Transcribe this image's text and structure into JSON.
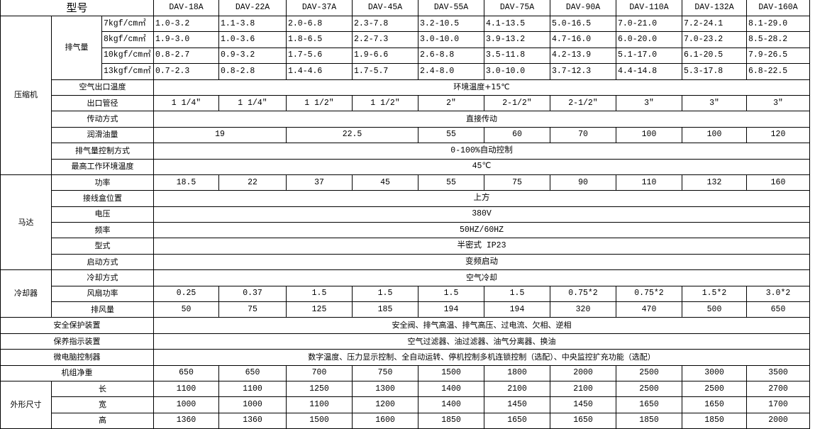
{
  "header": {
    "label": "型号",
    "models": [
      "DAV-18A",
      "DAV-22A",
      "DAV-37A",
      "DAV-45A",
      "DAV-55A",
      "DAV-75A",
      "DAV-90A",
      "DAV-110A",
      "DAV-132A",
      "DAV-160A"
    ]
  },
  "compressor": {
    "label": "压缩机",
    "displacement": {
      "label": "排气量",
      "rows": [
        {
          "pressure": "7kgf/cm㎡",
          "values": [
            "1.0-3.2",
            "1.1-3.8",
            "2.0-6.8",
            "2.3-7.8",
            "3.2-10.5",
            "4.1-13.5",
            "5.0-16.5",
            "7.0-21.0",
            "7.2-24.1",
            "8.1-29.0"
          ]
        },
        {
          "pressure": "8kgf/cm㎡",
          "values": [
            "1.9-3.0",
            "1.0-3.6",
            "1.8-6.5",
            "2.2-7.3",
            "3.0-10.0",
            "3.9-13.2",
            "4.7-16.0",
            "6.0-20.0",
            "7.0-23.2",
            "8.5-28.2"
          ]
        },
        {
          "pressure": "10kgf/cm㎡",
          "values": [
            "0.8-2.7",
            "0.9-3.2",
            "1.7-5.6",
            "1.9-6.6",
            "2.6-8.8",
            "3.5-11.8",
            "4.2-13.9",
            "5.1-17.0",
            "6.1-20.5",
            "7.9-26.5"
          ]
        },
        {
          "pressure": "13kgf/cm㎡",
          "values": [
            "0.7-2.3",
            "0.8-2.8",
            "1.4-4.6",
            "1.7-5.7",
            "2.4-8.0",
            "3.0-10.0",
            "3.7-12.3",
            "4.4-14.8",
            "5.3-17.8",
            "6.8-22.5"
          ]
        }
      ]
    },
    "air_outlet_temp": {
      "label": "空气出口温度",
      "value": "环境温度+15℃"
    },
    "outlet_pipe": {
      "label": "出口管径",
      "values": [
        "1 1/4″",
        "1 1/4″",
        "1 1/2″",
        "1 1/2″",
        "2″",
        "2-1/2″",
        "2-1/2″",
        "3″",
        "3″",
        "3″"
      ]
    },
    "drive": {
      "label": "传动方式",
      "value": "直接传动"
    },
    "lube_oil": {
      "label": "润滑油量",
      "groups": [
        {
          "value": "19",
          "span": 2
        },
        {
          "value": "22.5",
          "span": 2
        },
        {
          "value": "55",
          "span": 1
        },
        {
          "value": "60",
          "span": 1
        },
        {
          "value": "70",
          "span": 1
        },
        {
          "value": "100",
          "span": 1
        },
        {
          "value": "100",
          "span": 1
        },
        {
          "value": "120",
          "span": 1
        }
      ]
    },
    "capacity_control": {
      "label": "排气量控制方式",
      "value": "0-100%自动控制"
    },
    "max_ambient_temp": {
      "label": "最高工作环境温度",
      "value": "45℃"
    }
  },
  "motor": {
    "label": "马达",
    "power": {
      "label": "功率",
      "values": [
        "18.5",
        "22",
        "37",
        "45",
        "55",
        "75",
        "90",
        "110",
        "132",
        "160"
      ]
    },
    "junction_box": {
      "label": "接线盒位置",
      "value": "上方"
    },
    "voltage": {
      "label": "电压",
      "value": "380V"
    },
    "frequency": {
      "label": "频率",
      "value": "50HZ/60HZ"
    },
    "type": {
      "label": "型式",
      "value": "半密式 IP23"
    },
    "start": {
      "label": "启动方式",
      "value": "变频启动"
    }
  },
  "cooler": {
    "label": "冷却器",
    "method": {
      "label": "冷却方式",
      "value": "空气冷却"
    },
    "fan_power": {
      "label": "风扇功率",
      "values": [
        "0.25",
        "0.37",
        "1.5",
        "1.5",
        "1.5",
        "1.5",
        "0.75*2",
        "0.75*2",
        "1.5*2",
        "3.0*2"
      ]
    },
    "airflow": {
      "label": "排风量",
      "values": [
        "50",
        "75",
        "125",
        "185",
        "194",
        "194",
        "320",
        "470",
        "500",
        "650"
      ]
    }
  },
  "safety": {
    "label": "安全保护装置",
    "value": "安全阀、排气高温、排气高压、过电流、欠相、逆相"
  },
  "maintenance": {
    "label": "保养指示装置",
    "value": "空气过滤器、油过滤器、油气分离器、换油"
  },
  "controller": {
    "label": "微电脑控制器",
    "value": "数字温度、压力显示控制、全自动运转、停机控制多机连锁控制（选配）、中央监控扩充功能（选配）"
  },
  "weight": {
    "label": "机组净重",
    "values": [
      "650",
      "650",
      "700",
      "750",
      "1500",
      "1800",
      "2000",
      "2500",
      "3000",
      "3500"
    ]
  },
  "dimensions": {
    "label": "外形尺寸",
    "length": {
      "label": "长",
      "values": [
        "1100",
        "1100",
        "1250",
        "1300",
        "1400",
        "2100",
        "2100",
        "2500",
        "2500",
        "2700"
      ]
    },
    "width": {
      "label": "宽",
      "values": [
        "1000",
        "1000",
        "1100",
        "1200",
        "1400",
        "1450",
        "1450",
        "1650",
        "1650",
        "1700"
      ]
    },
    "height": {
      "label": "高",
      "values": [
        "1360",
        "1360",
        "1500",
        "1600",
        "1850",
        "1650",
        "1650",
        "1850",
        "1850",
        "2000"
      ]
    }
  }
}
